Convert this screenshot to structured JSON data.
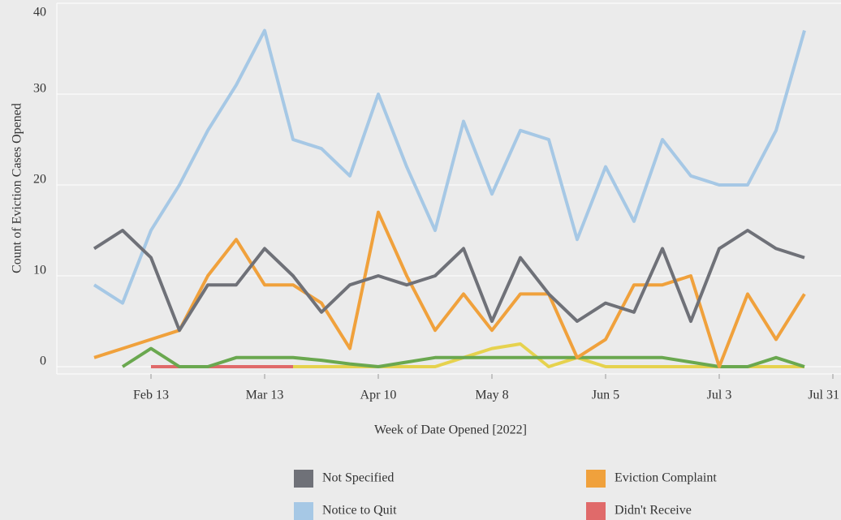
{
  "chart_data": {
    "type": "line",
    "y_label": "Count of Eviction Cases Opened",
    "x_label": "Week of Date Opened [2022]",
    "categories": [
      null,
      null,
      "Feb 13",
      null,
      null,
      null,
      "Mar 13",
      null,
      null,
      null,
      "Apr 10",
      null,
      null,
      null,
      "May 8",
      null,
      null,
      null,
      "Jun 5",
      null,
      null,
      null,
      "Jul 3",
      null,
      null,
      null,
      "Jul 31"
    ],
    "ylim": [
      0,
      40
    ],
    "yticks": [
      0,
      10,
      20,
      30,
      40
    ],
    "grid": true,
    "series": [
      {
        "name": "Notice to Quit",
        "color": "#a6c8e5",
        "values": [
          9,
          7,
          15,
          20,
          26,
          31,
          37,
          25,
          24,
          21,
          30,
          22,
          15,
          27,
          19,
          26,
          25,
          14,
          22,
          16,
          25,
          21,
          20,
          20,
          26,
          37,
          null
        ]
      },
      {
        "color": "#e6d24e",
        "values": [
          null,
          null,
          null,
          null,
          null,
          null,
          null,
          0,
          0,
          0,
          0,
          0,
          0,
          1,
          2,
          2.5,
          0,
          1,
          0,
          0,
          0,
          0,
          0,
          0,
          0,
          0,
          null
        ]
      },
      {
        "name": "Didn't Receive",
        "color": "#e06a6a",
        "values": [
          null,
          null,
          0,
          0,
          0,
          0,
          0,
          0,
          null,
          null,
          null,
          null,
          null,
          null,
          null,
          null,
          null,
          null,
          null,
          null,
          null,
          null,
          null,
          null,
          null,
          null,
          null
        ]
      },
      {
        "color": "#6aa84f",
        "values": [
          null,
          0,
          2,
          0,
          0,
          1,
          1,
          1,
          0.7,
          0.3,
          0,
          0.5,
          1,
          1,
          1,
          1,
          1,
          1,
          1,
          1,
          1,
          0.5,
          0,
          0,
          1,
          0,
          null
        ]
      },
      {
        "name": "Eviction Complaint",
        "color": "#f0a13c",
        "values": [
          1,
          2,
          3,
          4,
          10,
          14,
          9,
          9,
          7,
          2,
          17,
          10,
          4,
          8,
          4,
          8,
          8,
          1,
          3,
          9,
          9,
          10,
          0,
          8,
          3,
          8,
          null
        ]
      },
      {
        "name": "Not Specified",
        "color": "#6f7178",
        "values": [
          13,
          15,
          12,
          4,
          9,
          9,
          13,
          10,
          6,
          9,
          10,
          9,
          10,
          13,
          5,
          12,
          8,
          5,
          7,
          6,
          13,
          5,
          13,
          15,
          13,
          12,
          null
        ]
      }
    ],
    "legend": [
      {
        "name": "Not Specified",
        "color": "#6f7178"
      },
      {
        "name": "Eviction Complaint",
        "color": "#f0a13c"
      },
      {
        "name": "Notice to Quit",
        "color": "#a6c8e5"
      },
      {
        "name": "Didn't Receive",
        "color": "#e06a6a"
      }
    ]
  }
}
